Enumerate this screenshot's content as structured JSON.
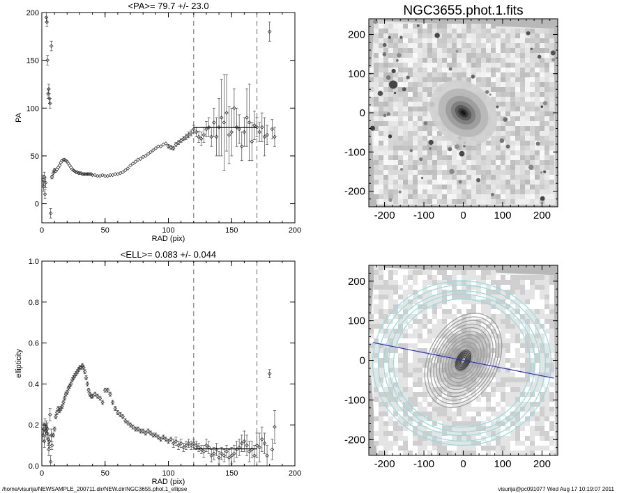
{
  "footer": {
    "path": "/home/visurija/NEWSAMPLE_200711.dir/NEW.dir/NGC3655.phot.1_ellipse",
    "stamp": "visurija@pc091077  Wed Aug 17 10:19:07 2011"
  },
  "chart_data": [
    {
      "type": "scatter",
      "title": "<PA>=  79.7 +/-  23.0",
      "xlabel": "RAD (pix)",
      "ylabel": "PA",
      "xlim": [
        0,
        200
      ],
      "ylim": [
        -20,
        200
      ],
      "xticks": [
        0,
        50,
        100,
        150,
        200
      ],
      "yticks": [
        0,
        50,
        100,
        150,
        200
      ],
      "marker": "diamond",
      "error_bars": true,
      "vlines": [
        120,
        170
      ],
      "mean_line": {
        "x": [
          120,
          170
        ],
        "y": 79.7
      },
      "series": [
        {
          "x": [
            1,
            1.5,
            2,
            2.5,
            3,
            3.5,
            4,
            4.5,
            5,
            5.5,
            6,
            6.5,
            7,
            7.5,
            8,
            9,
            10,
            11,
            12,
            13,
            14,
            15,
            16,
            17,
            18,
            19,
            20,
            21,
            22,
            23,
            24,
            25,
            26,
            27,
            28,
            29,
            30,
            31,
            32,
            33,
            34,
            35,
            36,
            37,
            38,
            39,
            40,
            42,
            44,
            46,
            48,
            50,
            52,
            54,
            56,
            58,
            60,
            62,
            64,
            66,
            68,
            70,
            72,
            74,
            76,
            78,
            80,
            82,
            84,
            86,
            88,
            90,
            92,
            94,
            96,
            98,
            100,
            102,
            104,
            106,
            108,
            110,
            112,
            114,
            116,
            118,
            120,
            122,
            124,
            126,
            128,
            130,
            132,
            134,
            136,
            138,
            140,
            142,
            144,
            146,
            148,
            150,
            152,
            154,
            156,
            158,
            160,
            162,
            164,
            166,
            168,
            170,
            172,
            174,
            176,
            178,
            180,
            182,
            184
          ],
          "y": [
            25,
            18,
            28,
            10,
            22,
            195,
            190,
            150,
            115,
            120,
            110,
            105,
            -10,
            165,
            28,
            32,
            35,
            34,
            36,
            38,
            40,
            43,
            45,
            46,
            46,
            45,
            44,
            42,
            40,
            38,
            36,
            35,
            34,
            33,
            33,
            32,
            32,
            32,
            31,
            31,
            31,
            31,
            31,
            31,
            31,
            31,
            30,
            30,
            29,
            29,
            30,
            29,
            29,
            30,
            30,
            31,
            31,
            32,
            33,
            35,
            37,
            40,
            42,
            44,
            46,
            47,
            49,
            50,
            52,
            54,
            56,
            58,
            60,
            60,
            62,
            63,
            60,
            59,
            58,
            62,
            64,
            66,
            68,
            70,
            72,
            74,
            78,
            75,
            70,
            68,
            72,
            78,
            80,
            70,
            85,
            70,
            80,
            90,
            85,
            95,
            72,
            75,
            100,
            80,
            78,
            60,
            75,
            90,
            85,
            65,
            82,
            80,
            75,
            80,
            70,
            72,
            180,
            78,
            70
          ],
          "errors": [
            5,
            5,
            5,
            5,
            5,
            5,
            5,
            5,
            5,
            5,
            5,
            5,
            5,
            5,
            2,
            2,
            2,
            1,
            1,
            1,
            1,
            1,
            1,
            1,
            1,
            1,
            1,
            1,
            1,
            1,
            1,
            1,
            1,
            1,
            1,
            1,
            1,
            1,
            1,
            1,
            1,
            1,
            1,
            1,
            1,
            1,
            1,
            1,
            1,
            1,
            1,
            1,
            1,
            1,
            1,
            1,
            1,
            1,
            1,
            1,
            1,
            1,
            1,
            1,
            1,
            1,
            1,
            1,
            1,
            1,
            1,
            1,
            1,
            1,
            1,
            1,
            2,
            2,
            2,
            2,
            2,
            2,
            2,
            3,
            3,
            3,
            4,
            5,
            6,
            7,
            8,
            8,
            10,
            10,
            15,
            20,
            30,
            40,
            50,
            40,
            30,
            25,
            20,
            20,
            15,
            15,
            15,
            30,
            40,
            20,
            15,
            10,
            10,
            15,
            20,
            10,
            10,
            10,
            10
          ]
        }
      ]
    },
    {
      "type": "scatter",
      "title": "<ELL>= 0.083 +/-  0.044",
      "xlabel": "RAD (pix)",
      "ylabel": "ellipticity",
      "xlim": [
        0,
        200
      ],
      "ylim": [
        0,
        1
      ],
      "xticks": [
        0,
        50,
        100,
        150,
        200
      ],
      "yticks": [
        0.0,
        0.2,
        0.4,
        0.6,
        0.8,
        1.0
      ],
      "ytick_labels": [
        "0.0",
        "0.2",
        "0.4",
        "0.6",
        "0.8",
        "1.0"
      ],
      "marker": "diamond",
      "error_bars": true,
      "vlines": [
        120,
        170
      ],
      "mean_line": {
        "x": [
          120,
          170
        ],
        "y": 0.083
      },
      "series": [
        {
          "x": [
            1,
            1.5,
            2,
            2.5,
            3,
            3.5,
            4,
            4.5,
            5,
            5.5,
            6,
            6.5,
            7,
            7.5,
            8,
            9,
            10,
            11,
            12,
            13,
            14,
            15,
            16,
            17,
            18,
            19,
            20,
            21,
            22,
            23,
            24,
            25,
            26,
            27,
            28,
            29,
            30,
            31,
            32,
            33,
            34,
            35,
            36,
            37,
            38,
            39,
            40,
            42,
            44,
            46,
            48,
            50,
            52,
            54,
            56,
            58,
            60,
            62,
            64,
            66,
            68,
            70,
            72,
            74,
            76,
            78,
            80,
            82,
            84,
            86,
            88,
            90,
            92,
            94,
            96,
            98,
            100,
            102,
            104,
            106,
            108,
            110,
            112,
            114,
            116,
            118,
            120,
            122,
            124,
            126,
            128,
            130,
            132,
            134,
            136,
            138,
            140,
            142,
            144,
            146,
            148,
            150,
            152,
            154,
            156,
            158,
            160,
            162,
            164,
            166,
            168,
            170,
            172,
            174,
            176,
            178,
            180,
            182,
            184
          ],
          "y": [
            0.15,
            0.18,
            0.12,
            0.2,
            0.17,
            0.19,
            0.16,
            0.18,
            0.13,
            0.08,
            0.12,
            0.25,
            0.02,
            0.15,
            0.1,
            0.15,
            0.18,
            0.24,
            0.26,
            0.28,
            0.27,
            0.28,
            0.29,
            0.31,
            0.33,
            0.35,
            0.36,
            0.38,
            0.39,
            0.4,
            0.42,
            0.43,
            0.44,
            0.45,
            0.46,
            0.47,
            0.48,
            0.48,
            0.49,
            0.48,
            0.46,
            0.43,
            0.4,
            0.37,
            0.35,
            0.34,
            0.34,
            0.35,
            0.34,
            0.33,
            0.31,
            0.37,
            0.37,
            0.35,
            0.31,
            0.28,
            0.26,
            0.25,
            0.24,
            0.22,
            0.21,
            0.2,
            0.19,
            0.18,
            0.18,
            0.17,
            0.17,
            0.16,
            0.17,
            0.16,
            0.15,
            0.15,
            0.14,
            0.13,
            0.14,
            0.13,
            0.12,
            0.13,
            0.11,
            0.12,
            0.1,
            0.11,
            0.09,
            0.1,
            0.11,
            0.1,
            0.11,
            0.1,
            0.09,
            0.08,
            0.07,
            0.1,
            0.09,
            0.05,
            0.06,
            0.08,
            0.04,
            0.06,
            0.05,
            0.07,
            0.04,
            0.05,
            0.06,
            0.08,
            0.09,
            0.11,
            0.12,
            0.1,
            0.07,
            0.08,
            0.05,
            0.1,
            0.09,
            0.13,
            0.11,
            0.05,
            0.45,
            0.08,
            0.19
          ],
          "errors": [
            0.03,
            0.03,
            0.03,
            0.03,
            0.03,
            0.03,
            0.03,
            0.03,
            0.03,
            0.03,
            0.03,
            0.03,
            0.03,
            0.03,
            0.02,
            0.01,
            0.01,
            0.01,
            0.01,
            0.01,
            0.01,
            0.01,
            0.01,
            0.01,
            0.01,
            0.01,
            0.01,
            0.01,
            0.01,
            0.01,
            0.01,
            0.01,
            0.01,
            0.01,
            0.01,
            0.01,
            0.01,
            0.01,
            0.01,
            0.01,
            0.01,
            0.01,
            0.01,
            0.01,
            0.01,
            0.01,
            0.01,
            0.01,
            0.01,
            0.01,
            0.01,
            0.01,
            0.01,
            0.01,
            0.01,
            0.01,
            0.01,
            0.01,
            0.01,
            0.01,
            0.01,
            0.01,
            0.01,
            0.01,
            0.01,
            0.01,
            0.01,
            0.01,
            0.01,
            0.01,
            0.01,
            0.01,
            0.01,
            0.01,
            0.01,
            0.01,
            0.01,
            0.01,
            0.02,
            0.02,
            0.02,
            0.02,
            0.02,
            0.02,
            0.02,
            0.02,
            0.02,
            0.02,
            0.02,
            0.02,
            0.03,
            0.03,
            0.03,
            0.03,
            0.03,
            0.03,
            0.03,
            0.03,
            0.03,
            0.03,
            0.04,
            0.04,
            0.04,
            0.04,
            0.04,
            0.04,
            0.05,
            0.05,
            0.05,
            0.04,
            0.05,
            0.06,
            0.07,
            0.06,
            0.05,
            0.05,
            0.02,
            0.05,
            0.08
          ]
        }
      ]
    },
    {
      "type": "heatmap",
      "title": "NGC3655.phot.1.fits",
      "colormap": "gray_inverted",
      "xlim": [
        -240,
        240
      ],
      "ylim": [
        -240,
        240
      ],
      "xticks": [
        -200,
        -100,
        0,
        100,
        200
      ],
      "yticks": [
        -200,
        -100,
        0,
        100,
        200
      ],
      "galaxy_center": [
        0,
        0
      ],
      "galaxy_pa_deg": 130,
      "field_corners": [
        [
          -225,
          235
        ],
        [
          230,
          215
        ],
        [
          235,
          -235
        ],
        [
          -220,
          -235
        ],
        [
          -240,
          40
        ]
      ]
    },
    {
      "type": "heatmap",
      "title": "",
      "colormap": "gray_contours",
      "xlim": [
        -240,
        240
      ],
      "ylim": [
        -240,
        240
      ],
      "xticks": [
        -200,
        -100,
        0,
        100,
        200
      ],
      "yticks": [
        -200,
        -100,
        0,
        100,
        200
      ],
      "contour_color_inner": "#9a9a9a",
      "contour_color_outer": "#8fdde0",
      "axis_line_color": "#2b2bc8",
      "axis_line": [
        [
          -230,
          45
        ],
        [
          230,
          -45
        ]
      ],
      "field_corners": [
        [
          -225,
          235
        ],
        [
          230,
          215
        ],
        [
          235,
          -235
        ],
        [
          -220,
          -235
        ],
        [
          -240,
          40
        ]
      ]
    }
  ]
}
